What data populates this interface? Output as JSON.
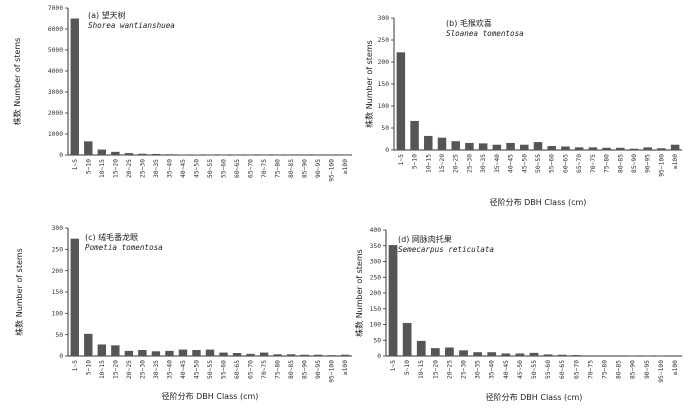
{
  "chart_data": [
    {
      "type": "bar",
      "title": "(a) 望天树",
      "subtitle": "Shorea wantianshuea",
      "ylabel": "株数 Number of stems",
      "xlabel": "",
      "categories": [
        "1~5",
        "5~10",
        "10~15",
        "15~20",
        "20~25",
        "25~30",
        "30~35",
        "35~40",
        "40~45",
        "45~50",
        "50~55",
        "55~60",
        "60~65",
        "65~70",
        "70~75",
        "75~80",
        "80~85",
        "85~90",
        "90~95",
        "95~100",
        "≥100"
      ],
      "yticks": [
        0,
        1000,
        2000,
        3000,
        4000,
        5000,
        6000,
        7000
      ],
      "ylim": [
        0,
        7000
      ],
      "values": [
        6500,
        650,
        260,
        150,
        90,
        60,
        50,
        35,
        25,
        20,
        15,
        12,
        10,
        8,
        6,
        5,
        4,
        3,
        3,
        2,
        4
      ],
      "bar_color": "#555555"
    },
    {
      "type": "bar",
      "title": "(b) 毛猴欢喜",
      "subtitle": "Sloanea tomentosa",
      "ylabel": "株数 Number of stems",
      "xlabel": "径阶分布 DBH Class (cm)",
      "categories": [
        "1~5",
        "5~10",
        "10~15",
        "15~20",
        "20~25",
        "25~30",
        "30~35",
        "35~40",
        "40~45",
        "45~50",
        "50~55",
        "55~60",
        "60~65",
        "65~70",
        "70~75",
        "75~80",
        "80~85",
        "85~90",
        "90~95",
        "95~100",
        "≥100"
      ],
      "yticks": [
        0,
        50,
        100,
        150,
        200,
        250,
        300
      ],
      "ylim": [
        0,
        300
      ],
      "values": [
        222,
        66,
        32,
        28,
        20,
        16,
        15,
        12,
        16,
        12,
        18,
        9,
        8,
        6,
        6,
        5,
        5,
        3,
        6,
        4,
        12
      ],
      "bar_color": "#555555"
    },
    {
      "type": "bar",
      "title": "(c) 绒毛番龙眼",
      "subtitle": "Pometia tomentosa",
      "ylabel": "株数 Number of stems",
      "xlabel": "径阶分布 DBH Class (cm)",
      "categories": [
        "1~5",
        "5~10",
        "10~15",
        "15~20",
        "20~25",
        "25~30",
        "30~35",
        "35~40",
        "40~45",
        "45~50",
        "50~55",
        "55~60",
        "60~65",
        "65~70",
        "70~75",
        "75~80",
        "80~85",
        "85~90",
        "90~95",
        "95~100",
        "≥100"
      ],
      "yticks": [
        0,
        50,
        100,
        150,
        200,
        250,
        300
      ],
      "ylim": [
        0,
        300
      ],
      "values": [
        275,
        52,
        27,
        25,
        12,
        14,
        11,
        12,
        15,
        14,
        15,
        8,
        7,
        5,
        8,
        4,
        4,
        3,
        3,
        2,
        3
      ],
      "bar_color": "#555555"
    },
    {
      "type": "bar",
      "title": "(d) 网脉肉托果",
      "subtitle": "Semecarpus reticulata",
      "ylabel": "株数 Number of stems",
      "xlabel": "径阶分布 DBH Class (cm)",
      "categories": [
        "1~5",
        "5~10",
        "10~15",
        "15~20",
        "20~25",
        "25~30",
        "30~35",
        "35~40",
        "40~45",
        "45~50",
        "50~55",
        "55~60",
        "60~65",
        "65~70",
        "70~75",
        "75~80",
        "80~85",
        "85~90",
        "90~95",
        "95~100",
        "≥100"
      ],
      "yticks": [
        0,
        50,
        100,
        150,
        200,
        250,
        300,
        350,
        400
      ],
      "ylim": [
        0,
        400
      ],
      "values": [
        352,
        105,
        48,
        25,
        27,
        18,
        12,
        12,
        8,
        8,
        10,
        5,
        4,
        3,
        2,
        2,
        2,
        1,
        1,
        1,
        2
      ],
      "bar_color": "#555555"
    }
  ]
}
